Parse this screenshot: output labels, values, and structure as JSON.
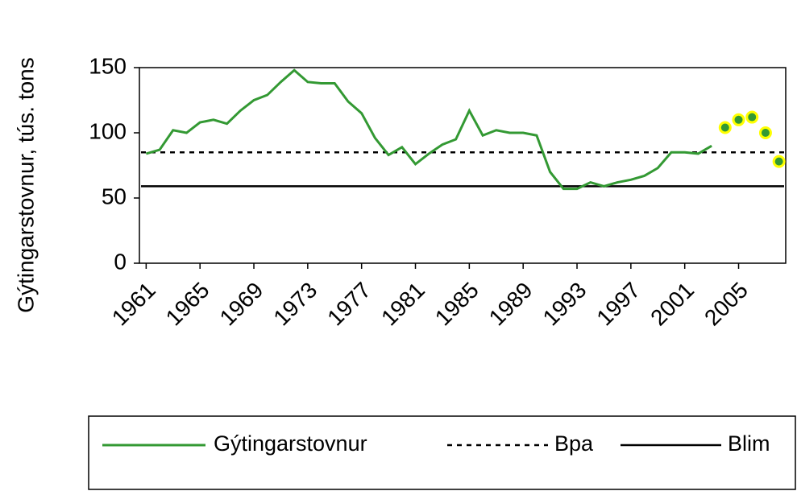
{
  "chart_data": {
    "type": "line",
    "y_label": "Gýtingarstovnur, tús. tons",
    "x": [
      1961,
      1962,
      1963,
      1964,
      1965,
      1966,
      1967,
      1968,
      1969,
      1970,
      1971,
      1972,
      1973,
      1974,
      1975,
      1976,
      1977,
      1978,
      1979,
      1980,
      1981,
      1982,
      1983,
      1984,
      1985,
      1986,
      1987,
      1988,
      1989,
      1990,
      1991,
      1992,
      1993,
      1994,
      1995,
      1996,
      1997,
      1998,
      1999,
      2000,
      2001,
      2002,
      2003,
      2004,
      2005,
      2006,
      2007,
      2008
    ],
    "series": [
      {
        "name": "Gýtingarstovnur",
        "color": "#339933",
        "values": [
          84,
          87,
          102,
          100,
          108,
          110,
          107,
          117,
          125,
          129,
          139,
          148,
          139,
          138,
          138,
          124,
          115,
          96,
          83,
          89,
          76,
          84,
          91,
          95,
          117,
          98,
          102,
          100,
          100,
          98,
          70,
          57,
          57,
          62,
          59,
          62,
          64,
          67,
          73,
          85,
          85,
          84,
          90,
          null,
          null,
          null,
          null,
          null
        ]
      },
      {
        "color": "#339933",
        "marker_edge": "#ffff00",
        "values": [
          null,
          null,
          null,
          null,
          null,
          null,
          null,
          null,
          null,
          null,
          null,
          null,
          null,
          null,
          null,
          null,
          null,
          null,
          null,
          null,
          null,
          null,
          null,
          null,
          null,
          null,
          null,
          null,
          null,
          null,
          null,
          null,
          null,
          null,
          null,
          null,
          null,
          null,
          null,
          null,
          null,
          null,
          null,
          104,
          110,
          112,
          100,
          78
        ]
      }
    ],
    "reference_lines": [
      {
        "name": "Bpa",
        "value": 85,
        "color": "#000000",
        "dashed": true
      },
      {
        "name": "Blim",
        "value": 59,
        "color": "#000000",
        "dashed": false
      }
    ],
    "xlim": [
      1960.5,
      2008.5
    ],
    "xticks": [
      1961,
      1965,
      1969,
      1973,
      1977,
      1981,
      1985,
      1989,
      1993,
      1997,
      2001,
      2005
    ],
    "ylim": [
      0,
      150
    ],
    "yticks": [
      0,
      50,
      100,
      150
    ],
    "grid": false
  }
}
